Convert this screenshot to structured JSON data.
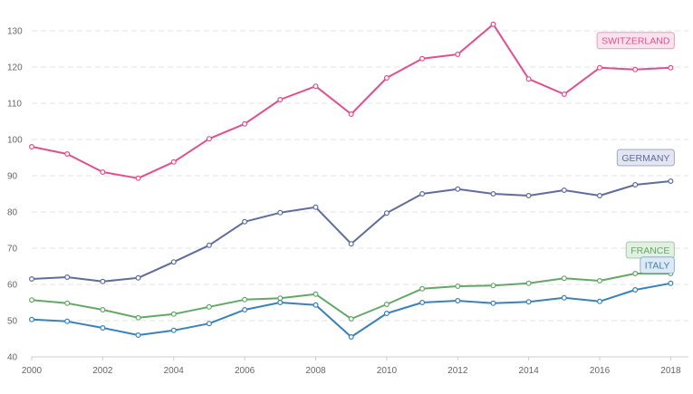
{
  "chart_data": {
    "type": "line",
    "x": [
      2000,
      2001,
      2002,
      2003,
      2004,
      2005,
      2006,
      2007,
      2008,
      2009,
      2010,
      2011,
      2012,
      2013,
      2014,
      2015,
      2016,
      2017,
      2018
    ],
    "xlim": [
      2000,
      2018.5
    ],
    "ylim": [
      40,
      132
    ],
    "xticks": [
      "2000",
      "2002",
      "2004",
      "2006",
      "2008",
      "2010",
      "2012",
      "2014",
      "2016",
      "2018"
    ],
    "yticks": [
      "40",
      "50",
      "60",
      "70",
      "80",
      "90",
      "100",
      "110",
      "120",
      "130"
    ],
    "grid": "horizontal dashed",
    "legend": "labels at line ends",
    "series": [
      {
        "name": "SWITZERLAND",
        "color": "#e0508f",
        "label_bg": "#fbe3ee",
        "values": [
          98.0,
          96.0,
          91.0,
          89.3,
          93.8,
          100.2,
          104.3,
          111.0,
          114.7,
          107.0,
          117.0,
          122.3,
          123.5,
          131.8,
          116.7,
          112.5,
          119.8,
          119.3,
          119.8
        ]
      },
      {
        "name": "GERMANY",
        "color": "#5f6d9c",
        "label_bg": "#e3e6f1",
        "values": [
          61.5,
          62.0,
          60.8,
          61.8,
          66.2,
          70.8,
          77.3,
          79.8,
          81.3,
          71.2,
          79.7,
          85.0,
          86.3,
          85.0,
          84.5,
          86.0,
          84.5,
          87.5,
          88.5
        ]
      },
      {
        "name": "FRANCE",
        "color": "#64a868",
        "label_bg": "#e1f0e1",
        "values": [
          55.7,
          54.8,
          53.0,
          50.8,
          51.8,
          53.8,
          55.8,
          56.2,
          57.3,
          50.5,
          54.5,
          58.8,
          59.5,
          59.7,
          60.3,
          61.7,
          61.0,
          63.0,
          63.0
        ]
      },
      {
        "name": "ITALY",
        "color": "#3a82b9",
        "label_bg": "#dde9f4",
        "values": [
          50.3,
          49.8,
          48.0,
          46.0,
          47.3,
          49.2,
          53.0,
          55.0,
          54.3,
          45.5,
          52.0,
          55.0,
          55.5,
          54.8,
          55.2,
          56.3,
          55.3,
          58.5,
          60.3
        ]
      }
    ]
  }
}
